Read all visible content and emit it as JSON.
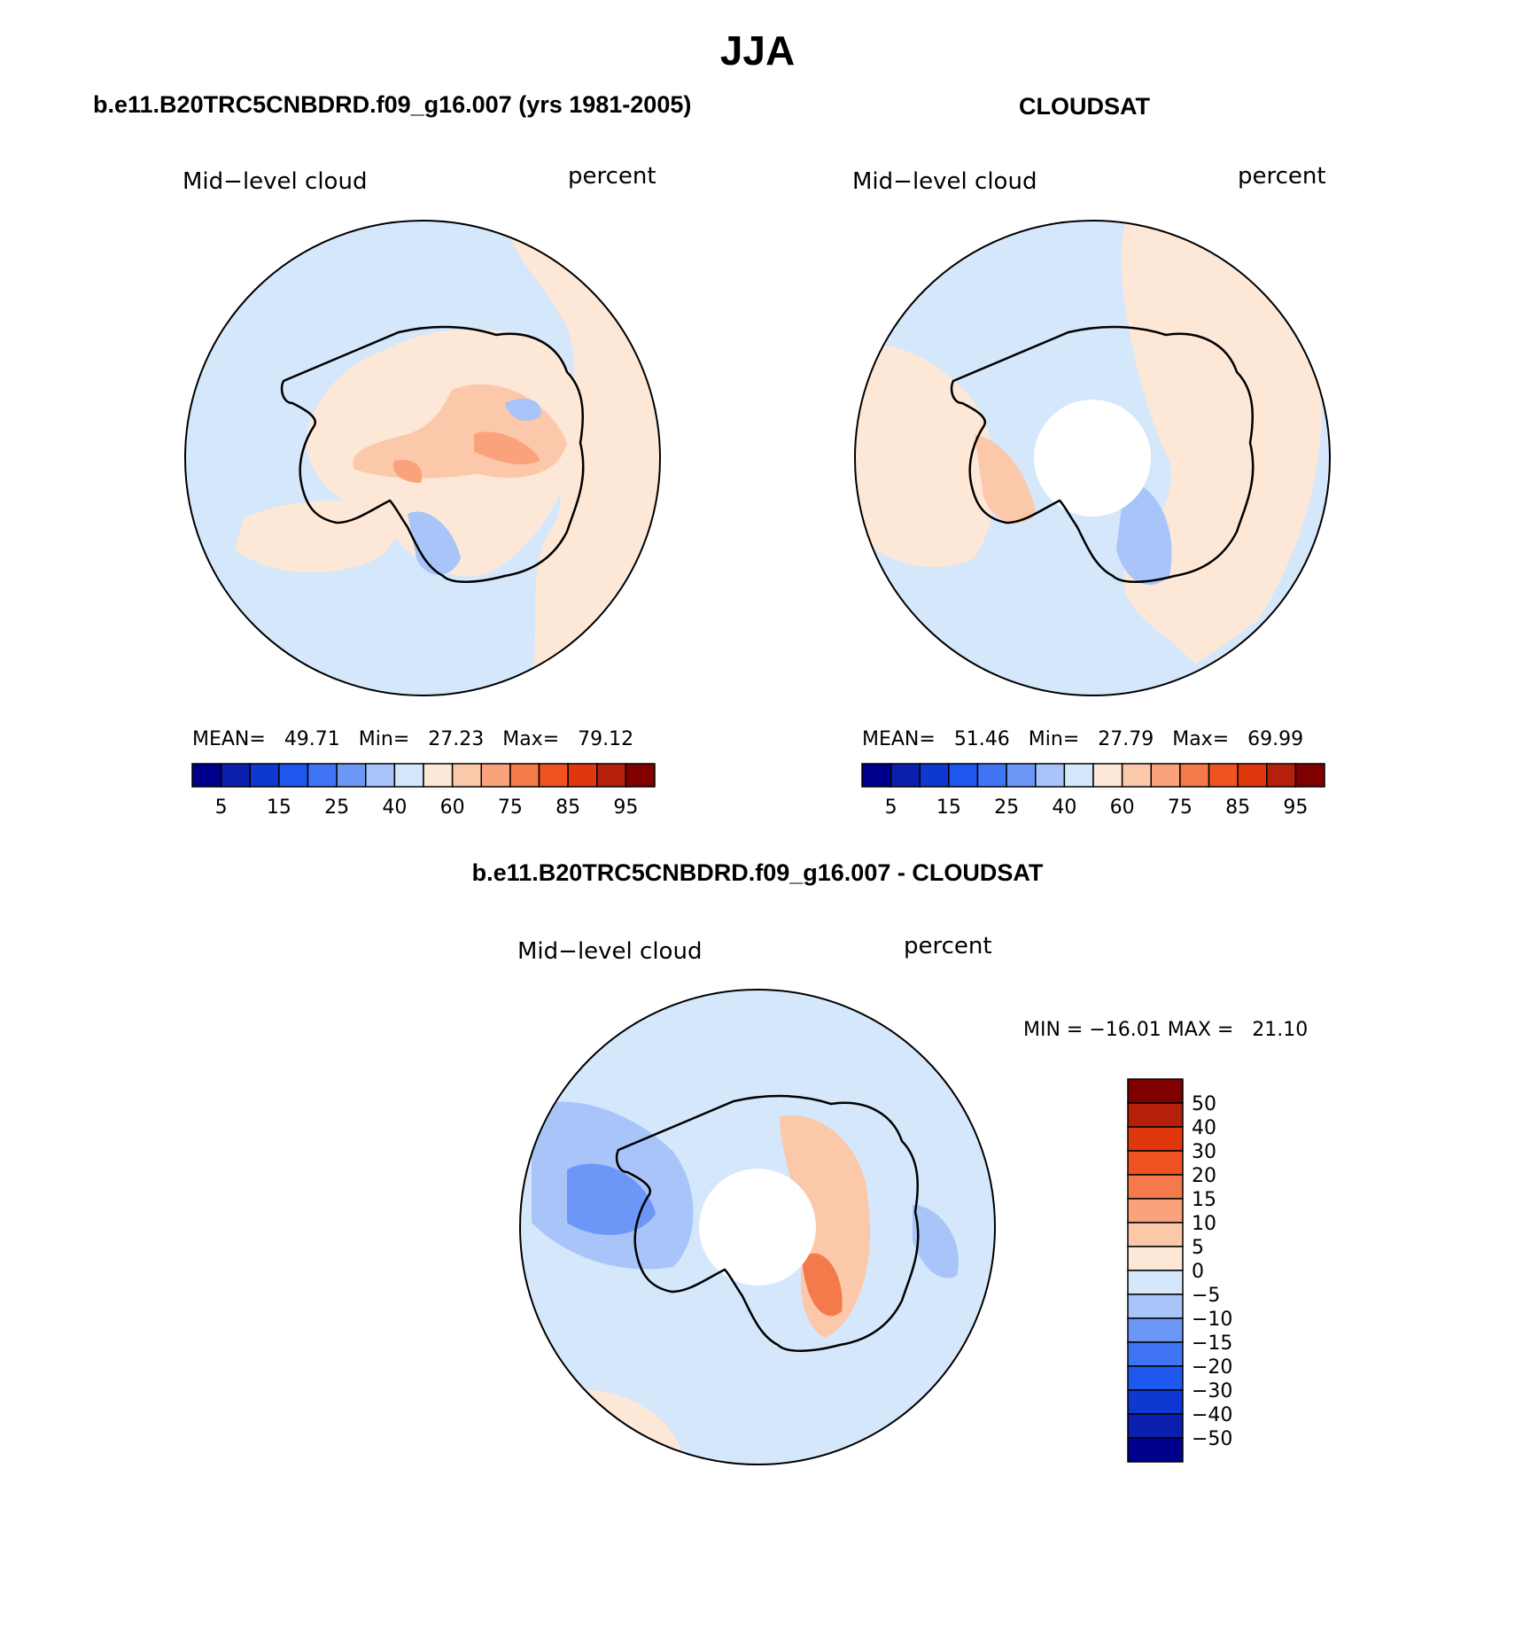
{
  "page": {
    "title": "JJA",
    "left_panel_title": "b.e11.B20TRC5CNBDRD.f09_g16.007 (yrs 1981-2005)",
    "right_panel_title": "CLOUDSAT",
    "diff_panel_title": "b.e11.B20TRC5CNBDRD.f09_g16.007 - CLOUDSAT"
  },
  "panels": {
    "model": {
      "variable": "Mid−level cloud",
      "units": "percent",
      "stats": {
        "mean_label": "MEAN=",
        "mean": "49.71",
        "min_label": "Min=",
        "min": "27.23",
        "max_label": "Max=",
        "max": "79.12"
      }
    },
    "obs": {
      "variable": "Mid−level cloud",
      "units": "percent",
      "stats": {
        "mean_label": "MEAN=",
        "mean": "51.46",
        "min_label": "Min=",
        "min": "27.79",
        "max_label": "Max=",
        "max": "69.99"
      }
    },
    "diff": {
      "variable": "Mid−level cloud",
      "units": "percent",
      "stats": {
        "min_label": "MIN =",
        "min": "−16.01",
        "max_label": "MAX =",
        "max": "21.10"
      }
    }
  },
  "colorbars": {
    "abs": {
      "colors": [
        "#00008c",
        "#0a1fae",
        "#0f37d2",
        "#1e56f0",
        "#3f75f5",
        "#6d97f7",
        "#a8c4f9",
        "#d5e7fb",
        "#fde8d8",
        "#fcc8aa",
        "#f9a27c",
        "#f47a4b",
        "#ef5322",
        "#e0370d",
        "#b5200a",
        "#800000"
      ],
      "tick_labels": [
        "5",
        "15",
        "25",
        "40",
        "60",
        "75",
        "85",
        "95"
      ]
    },
    "diff": {
      "colors": [
        "#800000",
        "#b5200a",
        "#e0370d",
        "#ef5322",
        "#f47a4b",
        "#f9a27c",
        "#fcc8aa",
        "#fde8d8",
        "#d5e7fb",
        "#a8c4f9",
        "#6d97f7",
        "#3f75f5",
        "#1e56f0",
        "#0f37d2",
        "#0a1fae",
        "#00008c"
      ],
      "tick_labels": [
        "50",
        "40",
        "30",
        "20",
        "15",
        "10",
        "5",
        "0",
        "−5",
        "−10",
        "−15",
        "−20",
        "−30",
        "−40",
        "−50"
      ]
    }
  },
  "chart_data": [
    {
      "type": "heatmap",
      "title": "b.e11.B20TRC5CNBDRD.f09_g16.007 (yrs 1981-2005)",
      "variable": "Mid−level cloud",
      "units": "percent",
      "projection": "south polar stereographic",
      "mean": 49.71,
      "min": 27.23,
      "max": 79.12,
      "levels": [
        5,
        10,
        15,
        20,
        25,
        30,
        40,
        50,
        60,
        70,
        75,
        80,
        85,
        90,
        95
      ]
    },
    {
      "type": "heatmap",
      "title": "CLOUDSAT",
      "variable": "Mid−level cloud",
      "units": "percent",
      "projection": "south polar stereographic",
      "mean": 51.46,
      "min": 27.79,
      "max": 69.99,
      "levels": [
        5,
        10,
        15,
        20,
        25,
        30,
        40,
        50,
        60,
        70,
        75,
        80,
        85,
        90,
        95
      ]
    },
    {
      "type": "heatmap",
      "title": "b.e11.B20TRC5CNBDRD.f09_g16.007 - CLOUDSAT",
      "variable": "Mid−level cloud",
      "units": "percent",
      "projection": "south polar stereographic",
      "min": -16.01,
      "max": 21.1,
      "levels": [
        -50,
        -40,
        -30,
        -20,
        -15,
        -10,
        -5,
        0,
        5,
        10,
        15,
        20,
        30,
        40,
        50
      ]
    }
  ]
}
